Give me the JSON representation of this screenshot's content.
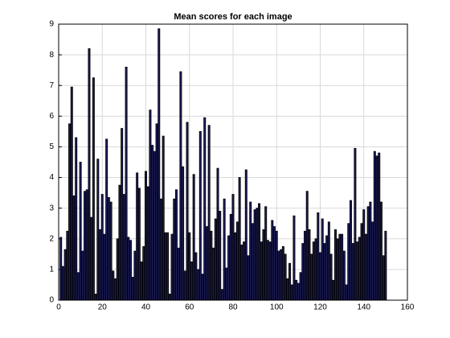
{
  "chart_data": {
    "type": "bar",
    "title": "Mean scores for each image",
    "x": [
      1,
      2,
      3,
      4,
      5,
      6,
      7,
      8,
      9,
      10,
      11,
      12,
      13,
      14,
      15,
      16,
      17,
      18,
      19,
      20,
      21,
      22,
      23,
      24,
      25,
      26,
      27,
      28,
      29,
      30,
      31,
      32,
      33,
      34,
      35,
      36,
      37,
      38,
      39,
      40,
      41,
      42,
      43,
      44,
      45,
      46,
      47,
      48,
      49,
      50,
      51,
      52,
      53,
      54,
      55,
      56,
      57,
      58,
      59,
      60,
      61,
      62,
      63,
      64,
      65,
      66,
      67,
      68,
      69,
      70,
      71,
      72,
      73,
      74,
      75,
      76,
      77,
      78,
      79,
      80,
      81,
      82,
      83,
      84,
      85,
      86,
      87,
      88,
      89,
      90,
      91,
      92,
      93,
      94,
      95,
      96,
      97,
      98,
      99,
      100,
      101,
      102,
      103,
      104,
      105,
      106,
      107,
      108,
      109,
      110,
      111,
      112,
      113,
      114,
      115,
      116,
      117,
      118,
      119,
      120,
      121,
      122,
      123,
      124,
      125,
      126,
      127,
      128,
      129,
      130,
      131,
      132,
      133,
      134,
      135,
      136,
      137,
      138,
      139,
      140,
      141,
      142,
      143,
      144,
      145,
      146,
      147,
      148,
      149,
      150
    ],
    "values": [
      2.05,
      1.1,
      1.65,
      2.25,
      5.75,
      6.95,
      3.4,
      5.3,
      0.9,
      4.5,
      1.6,
      3.55,
      3.6,
      8.2,
      2.7,
      7.25,
      0.2,
      4.6,
      2.3,
      3.45,
      2.15,
      5.25,
      3.35,
      3.2,
      0.95,
      0.7,
      2.0,
      3.75,
      5.6,
      3.45,
      7.6,
      2.05,
      1.95,
      0.75,
      1.6,
      4.15,
      3.65,
      1.25,
      1.75,
      4.2,
      3.7,
      6.2,
      5.05,
      4.85,
      5.75,
      8.85,
      3.3,
      5.35,
      2.2,
      2.2,
      0.2,
      2.15,
      3.3,
      3.6,
      1.7,
      7.45,
      4.35,
      0.95,
      5.8,
      2.2,
      1.25,
      4.1,
      1.55,
      1.0,
      5.5,
      0.85,
      5.95,
      2.4,
      5.7,
      2.25,
      1.7,
      2.65,
      4.3,
      2.9,
      0.35,
      3.3,
      1.05,
      2.1,
      2.8,
      3.45,
      2.2,
      2.55,
      4.0,
      1.8,
      1.9,
      4.25,
      1.45,
      3.2,
      2.5,
      2.95,
      3.0,
      3.15,
      1.9,
      2.3,
      3.05,
      1.95,
      1.9,
      2.6,
      2.4,
      2.25,
      1.6,
      1.65,
      1.75,
      1.5,
      0.7,
      1.2,
      0.5,
      2.75,
      0.65,
      0.55,
      0.9,
      1.85,
      2.25,
      3.55,
      2.3,
      1.5,
      1.9,
      2.0,
      2.85,
      1.55,
      2.65,
      1.85,
      2.1,
      2.55,
      1.5,
      0.65,
      2.3,
      2.0,
      2.15,
      2.15,
      1.6,
      0.5,
      2.5,
      3.25,
      1.85,
      4.95,
      1.9,
      2.05,
      2.5,
      2.95,
      2.15,
      3.05,
      3.2,
      2.55,
      4.85,
      4.7,
      4.8,
      3.2,
      1.45,
      2.25
    ],
    "color": "#1c1c5c",
    "xlim": [
      0,
      160
    ],
    "xticks": [
      0,
      20,
      40,
      60,
      80,
      100,
      120,
      140,
      160
    ],
    "ylim": [
      0,
      9
    ],
    "yticks": [
      0,
      1,
      2,
      3,
      4,
      5,
      6,
      7,
      8,
      9
    ],
    "grid": true
  }
}
